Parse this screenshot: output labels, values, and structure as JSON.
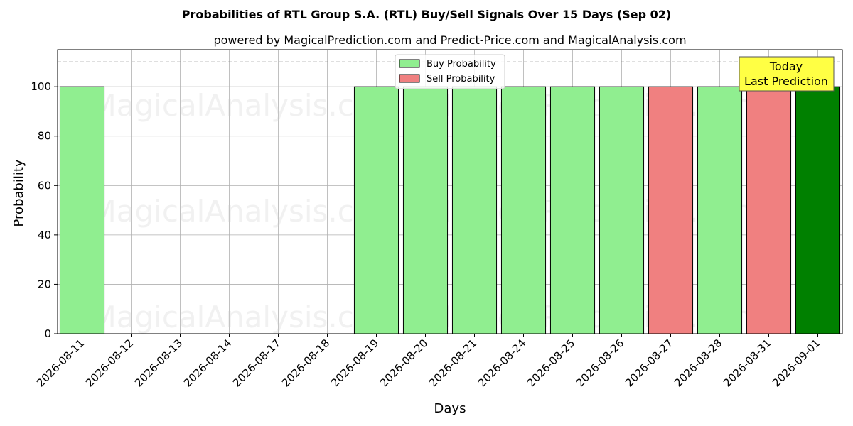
{
  "chart_data": {
    "type": "bar",
    "title": "Probabilities of RTL Group S.A. (RTL) Buy/Sell Signals Over 15 Days (Sep 02)",
    "subtitle": "powered by MagicalPrediction.com and Predict-Price.com and MagicalAnalysis.com",
    "xlabel": "Days",
    "ylabel": "Probability",
    "ylim": [
      0,
      115
    ],
    "yticks": [
      0,
      20,
      40,
      60,
      80,
      100
    ],
    "grid": true,
    "legend_placement": "top-center",
    "reference_line": {
      "y": 110,
      "style": "dashed",
      "color": "#808080"
    },
    "categories": [
      "2026-08-11",
      "2026-08-12",
      "2026-08-13",
      "2026-08-14",
      "2026-08-17",
      "2026-08-18",
      "2026-08-19",
      "2026-08-20",
      "2026-08-21",
      "2026-08-24",
      "2026-08-25",
      "2026-08-26",
      "2026-08-27",
      "2026-08-28",
      "2026-08-31",
      "2026-09-01"
    ],
    "series": [
      {
        "name": "Buy Probability",
        "color": "#90ee90",
        "values": [
          100,
          0,
          0,
          0,
          0,
          0,
          100,
          100,
          100,
          100,
          100,
          100,
          0,
          100,
          0,
          100
        ]
      },
      {
        "name": "Sell Probability",
        "color": "#f08080",
        "values": [
          0,
          0,
          0,
          0,
          0,
          0,
          0,
          0,
          0,
          0,
          0,
          0,
          100,
          0,
          100,
          0
        ]
      }
    ],
    "highlight": {
      "category": "2026-09-01",
      "color": "#008000"
    },
    "annotation": {
      "lines": [
        "Today",
        "Last Prediction"
      ],
      "background": "#ffff44"
    },
    "watermarks": [
      "MagicalAnalysis.com",
      "MagicalPrediction.com"
    ]
  }
}
